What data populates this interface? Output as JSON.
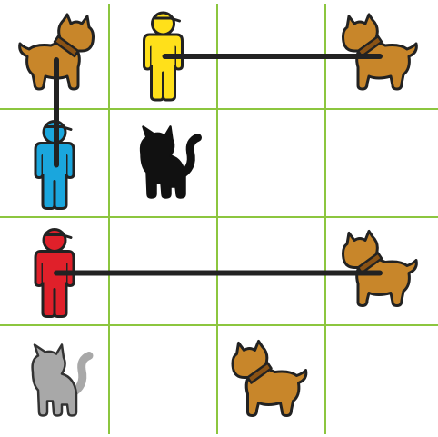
{
  "puzzle": {
    "grid": {
      "rows": 4,
      "cols": 4,
      "line_color": "#8cc63f"
    },
    "pieces": [
      {
        "kind": "dog",
        "name": "dog-piece-r0c0",
        "row": 0,
        "col": 0,
        "color": "#c8862a",
        "collar": "#8a5214",
        "facing": "right"
      },
      {
        "kind": "person",
        "name": "person-yellow",
        "row": 0,
        "col": 1,
        "color": "#ffe01a"
      },
      {
        "kind": "dog",
        "name": "dog-piece-r0c3",
        "row": 0,
        "col": 3,
        "color": "#c8862a",
        "collar": "#8a5214",
        "facing": "left"
      },
      {
        "kind": "person",
        "name": "person-blue",
        "row": 1,
        "col": 0,
        "color": "#1aa6dd"
      },
      {
        "kind": "cat",
        "name": "cat-black",
        "row": 1,
        "col": 1,
        "color": "#111111"
      },
      {
        "kind": "person",
        "name": "person-red",
        "row": 2,
        "col": 0,
        "color": "#e0202a"
      },
      {
        "kind": "dog",
        "name": "dog-piece-r2c3",
        "row": 2,
        "col": 3,
        "color": "#c8862a",
        "collar": "#8a5214",
        "facing": "left"
      },
      {
        "kind": "cat",
        "name": "cat-gray",
        "row": 3,
        "col": 0,
        "color": "#a8a8a8"
      },
      {
        "kind": "dog",
        "name": "dog-piece-r3c2",
        "row": 3,
        "col": 2,
        "color": "#c8862a",
        "collar": "#8a5214",
        "facing": "left"
      }
    ],
    "leashes": [
      {
        "name": "leash-yellow-to-dog",
        "from": {
          "row": 0,
          "col": 1
        },
        "to": {
          "row": 0,
          "col": 3
        }
      },
      {
        "name": "leash-blue-to-dog",
        "from": {
          "row": 1,
          "col": 0
        },
        "to": {
          "row": 0,
          "col": 0
        }
      },
      {
        "name": "leash-red-to-dog",
        "from": {
          "row": 2,
          "col": 0
        },
        "to": {
          "row": 2,
          "col": 3
        }
      }
    ],
    "leash_color": "#222222"
  }
}
